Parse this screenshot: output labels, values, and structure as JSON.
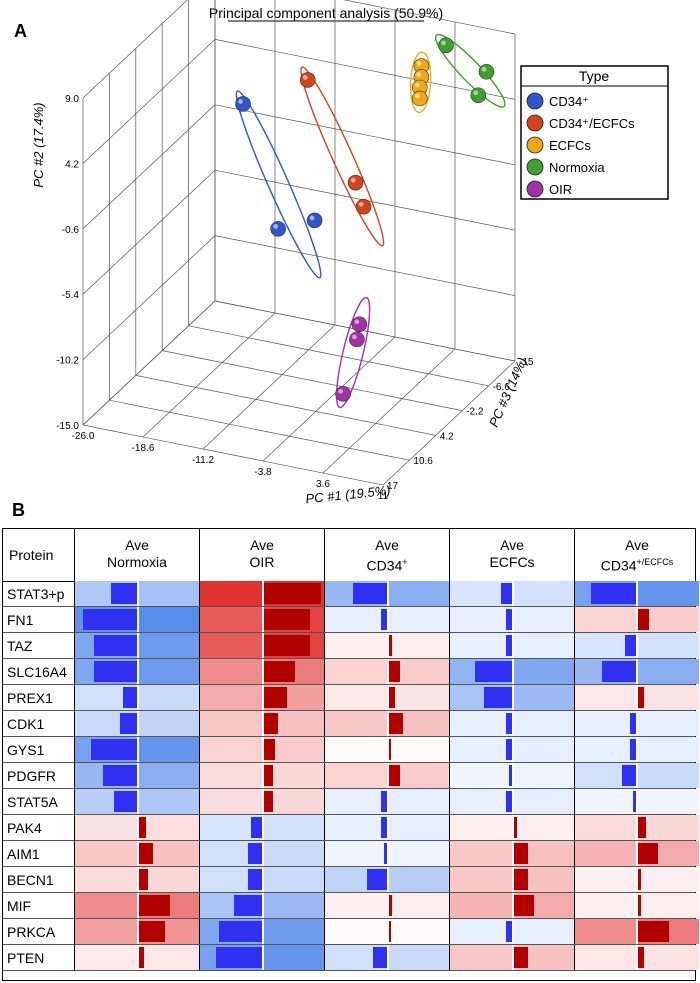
{
  "panel_a": {
    "letter": "A",
    "title": "Principal component analysis (50.9%)",
    "legend_title": "Type",
    "axis_x_label": "PC #1 (19.5%)",
    "axis_y_label": "PC #2 (17.4%)",
    "axis_z_label": "PC #3 (14%)"
  },
  "panel_b": {
    "letter": "B",
    "protein_header": "Protein"
  },
  "chart_data": [
    {
      "type": "scatter",
      "title": "Principal component analysis (50.9%)",
      "xlabel": "PC #1 (19.5%)",
      "ylabel": "PC #2 (17.4%)",
      "zlabel": "PC #3 (14%)",
      "xlim": [
        -26.0,
        11
      ],
      "ylim": [
        -15.0,
        9.0
      ],
      "zlim": [
        17,
        -15
      ],
      "x_ticks": [
        "-26.0",
        "-18.6",
        "-11.2",
        "-3.8",
        "3.6",
        "11"
      ],
      "y_ticks": [
        "-15.0",
        "-10.2",
        "-5.4",
        "-0.6",
        "4.2",
        "9.0"
      ],
      "z_ticks": [
        "17",
        "10.6",
        "4.2",
        "-2.2",
        "-6.6",
        "-15"
      ],
      "grid": true,
      "legend": "right",
      "series": [
        {
          "name": "CD34⁺",
          "color": "#2f55c8",
          "points": [
            {
              "x": -20.0,
              "y": 1.6,
              "z": -10
            },
            {
              "x": -6.0,
              "y": -0.5,
              "z": 9
            },
            {
              "x": -1.0,
              "y": 1.0,
              "z": 10
            }
          ]
        },
        {
          "name": "CD34⁺/ECFCs",
          "color": "#d0441e",
          "points": [
            {
              "x": -11.0,
              "y": 5.0,
              "z": -8
            },
            {
              "x": 1.0,
              "y": 2.3,
              "z": 4
            },
            {
              "x": 2.5,
              "y": 1.0,
              "z": 5
            }
          ]
        },
        {
          "name": "ECFCs",
          "color": "#f0a818",
          "points": [
            {
              "x": 2.0,
              "y": 7.0,
              "z": -10
            },
            {
              "x": 2.0,
              "y": 6.2,
              "z": -10
            },
            {
              "x": 1.8,
              "y": 5.4,
              "z": -10
            },
            {
              "x": 1.8,
              "y": 4.6,
              "z": -10
            }
          ]
        },
        {
          "name": "Normoxia",
          "color": "#3fa030",
          "points": [
            {
              "x": 3.0,
              "y": 7.5,
              "z": -14
            },
            {
              "x": 8.5,
              "y": 6.5,
              "z": -13
            },
            {
              "x": 8.0,
              "y": 5.0,
              "z": -12
            }
          ]
        },
        {
          "name": "OIR",
          "color": "#a032a8",
          "points": [
            {
              "x": 3.0,
              "y": -7.0,
              "z": 7
            },
            {
              "x": 3.2,
              "y": -7.8,
              "z": 8
            },
            {
              "x": 1.5,
              "y": -12.0,
              "z": 8
            }
          ]
        }
      ]
    },
    {
      "type": "heatmap",
      "columns": [
        {
          "line1": "Ave",
          "line2": "Normoxia",
          "sup": ""
        },
        {
          "line1": "Ave",
          "line2": "OIR",
          "sup": ""
        },
        {
          "line1": "Ave",
          "line2": "CD34",
          "sup": "+"
        },
        {
          "line1": "Ave",
          "line2": "ECFCs",
          "sup": ""
        },
        {
          "line1": "Ave",
          "line2": "CD34",
          "sup": "+/ECFCs"
        }
      ],
      "rows": [
        "STAT3+p",
        "FN1",
        "TAZ",
        "SLC16A4",
        "PREX1",
        "CDK1",
        "GYS1",
        "PDGFR",
        "STAT5A",
        "PAK4",
        "AIM1",
        "BECN1",
        "MIF",
        "PRKCA",
        "PTEN"
      ],
      "values": [
        [
          -0.45,
          1.0,
          -0.6,
          -0.2,
          -0.8
        ],
        [
          -0.95,
          0.8,
          -0.1,
          -0.1,
          0.2
        ],
        [
          -0.75,
          0.8,
          0.05,
          -0.1,
          -0.2
        ],
        [
          -0.75,
          0.55,
          0.2,
          -0.65,
          -0.6
        ],
        [
          -0.25,
          0.4,
          0.1,
          -0.5,
          0.1
        ],
        [
          -0.3,
          0.25,
          0.25,
          -0.1,
          -0.1
        ],
        [
          -0.8,
          0.2,
          0.0,
          -0.1,
          -0.1
        ],
        [
          -0.6,
          0.15,
          0.2,
          -0.05,
          -0.25
        ],
        [
          -0.4,
          0.15,
          -0.1,
          -0.1,
          -0.05
        ],
        [
          0.12,
          -0.2,
          -0.1,
          0.05,
          0.15
        ],
        [
          0.25,
          -0.25,
          -0.05,
          0.25,
          0.35
        ],
        [
          0.15,
          -0.25,
          -0.35,
          0.25,
          0.05
        ],
        [
          0.55,
          -0.5,
          0.05,
          0.35,
          0.05
        ],
        [
          0.45,
          -0.75,
          0.0,
          -0.1,
          0.55
        ],
        [
          0.08,
          -0.8,
          -0.25,
          0.25,
          0.1
        ]
      ]
    }
  ]
}
